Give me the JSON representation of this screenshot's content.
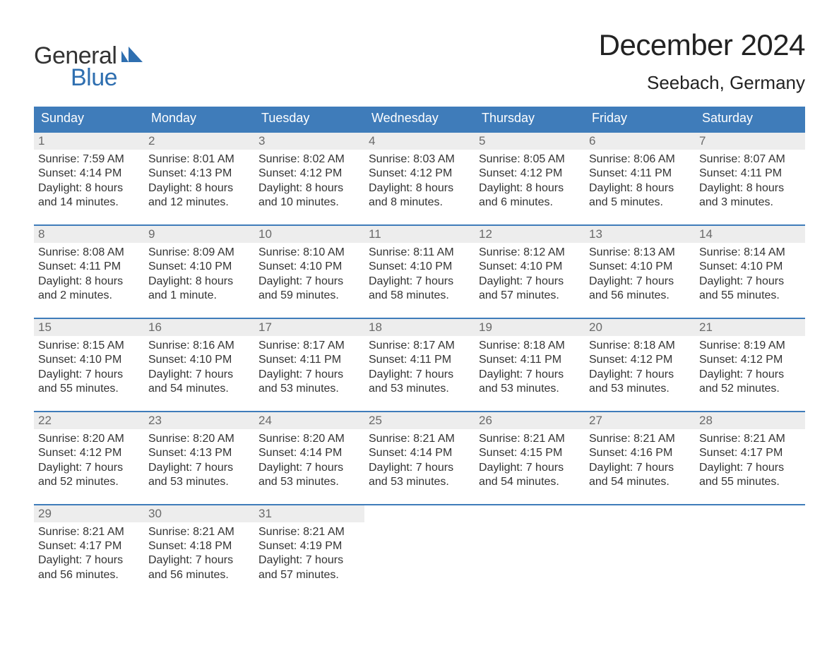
{
  "brand": {
    "word1": "General",
    "word2": "Blue",
    "word1_color": "#333333",
    "word2_color": "#2f6fb0",
    "mark_color": "#2f6fb0"
  },
  "title": {
    "month": "December 2024",
    "location": "Seebach, Germany",
    "month_fontsize": 42,
    "location_fontsize": 26,
    "text_color": "#222222"
  },
  "calendar": {
    "header_bg": "#3f7cba",
    "header_text_color": "#ffffff",
    "week_separator_color": "#3f7cba",
    "daynum_bg": "#ededed",
    "daynum_color": "#6a6a6a",
    "content_color": "#333333",
    "background_color": "#ffffff",
    "days_of_week": [
      "Sunday",
      "Monday",
      "Tuesday",
      "Wednesday",
      "Thursday",
      "Friday",
      "Saturday"
    ],
    "weeks": [
      [
        {
          "n": "1",
          "sunrise": "Sunrise: 7:59 AM",
          "sunset": "Sunset: 4:14 PM",
          "d1": "Daylight: 8 hours",
          "d2": "and 14 minutes."
        },
        {
          "n": "2",
          "sunrise": "Sunrise: 8:01 AM",
          "sunset": "Sunset: 4:13 PM",
          "d1": "Daylight: 8 hours",
          "d2": "and 12 minutes."
        },
        {
          "n": "3",
          "sunrise": "Sunrise: 8:02 AM",
          "sunset": "Sunset: 4:12 PM",
          "d1": "Daylight: 8 hours",
          "d2": "and 10 minutes."
        },
        {
          "n": "4",
          "sunrise": "Sunrise: 8:03 AM",
          "sunset": "Sunset: 4:12 PM",
          "d1": "Daylight: 8 hours",
          "d2": "and 8 minutes."
        },
        {
          "n": "5",
          "sunrise": "Sunrise: 8:05 AM",
          "sunset": "Sunset: 4:12 PM",
          "d1": "Daylight: 8 hours",
          "d2": "and 6 minutes."
        },
        {
          "n": "6",
          "sunrise": "Sunrise: 8:06 AM",
          "sunset": "Sunset: 4:11 PM",
          "d1": "Daylight: 8 hours",
          "d2": "and 5 minutes."
        },
        {
          "n": "7",
          "sunrise": "Sunrise: 8:07 AM",
          "sunset": "Sunset: 4:11 PM",
          "d1": "Daylight: 8 hours",
          "d2": "and 3 minutes."
        }
      ],
      [
        {
          "n": "8",
          "sunrise": "Sunrise: 8:08 AM",
          "sunset": "Sunset: 4:11 PM",
          "d1": "Daylight: 8 hours",
          "d2": "and 2 minutes."
        },
        {
          "n": "9",
          "sunrise": "Sunrise: 8:09 AM",
          "sunset": "Sunset: 4:10 PM",
          "d1": "Daylight: 8 hours",
          "d2": "and 1 minute."
        },
        {
          "n": "10",
          "sunrise": "Sunrise: 8:10 AM",
          "sunset": "Sunset: 4:10 PM",
          "d1": "Daylight: 7 hours",
          "d2": "and 59 minutes."
        },
        {
          "n": "11",
          "sunrise": "Sunrise: 8:11 AM",
          "sunset": "Sunset: 4:10 PM",
          "d1": "Daylight: 7 hours",
          "d2": "and 58 minutes."
        },
        {
          "n": "12",
          "sunrise": "Sunrise: 8:12 AM",
          "sunset": "Sunset: 4:10 PM",
          "d1": "Daylight: 7 hours",
          "d2": "and 57 minutes."
        },
        {
          "n": "13",
          "sunrise": "Sunrise: 8:13 AM",
          "sunset": "Sunset: 4:10 PM",
          "d1": "Daylight: 7 hours",
          "d2": "and 56 minutes."
        },
        {
          "n": "14",
          "sunrise": "Sunrise: 8:14 AM",
          "sunset": "Sunset: 4:10 PM",
          "d1": "Daylight: 7 hours",
          "d2": "and 55 minutes."
        }
      ],
      [
        {
          "n": "15",
          "sunrise": "Sunrise: 8:15 AM",
          "sunset": "Sunset: 4:10 PM",
          "d1": "Daylight: 7 hours",
          "d2": "and 55 minutes."
        },
        {
          "n": "16",
          "sunrise": "Sunrise: 8:16 AM",
          "sunset": "Sunset: 4:10 PM",
          "d1": "Daylight: 7 hours",
          "d2": "and 54 minutes."
        },
        {
          "n": "17",
          "sunrise": "Sunrise: 8:17 AM",
          "sunset": "Sunset: 4:11 PM",
          "d1": "Daylight: 7 hours",
          "d2": "and 53 minutes."
        },
        {
          "n": "18",
          "sunrise": "Sunrise: 8:17 AM",
          "sunset": "Sunset: 4:11 PM",
          "d1": "Daylight: 7 hours",
          "d2": "and 53 minutes."
        },
        {
          "n": "19",
          "sunrise": "Sunrise: 8:18 AM",
          "sunset": "Sunset: 4:11 PM",
          "d1": "Daylight: 7 hours",
          "d2": "and 53 minutes."
        },
        {
          "n": "20",
          "sunrise": "Sunrise: 8:18 AM",
          "sunset": "Sunset: 4:12 PM",
          "d1": "Daylight: 7 hours",
          "d2": "and 53 minutes."
        },
        {
          "n": "21",
          "sunrise": "Sunrise: 8:19 AM",
          "sunset": "Sunset: 4:12 PM",
          "d1": "Daylight: 7 hours",
          "d2": "and 52 minutes."
        }
      ],
      [
        {
          "n": "22",
          "sunrise": "Sunrise: 8:20 AM",
          "sunset": "Sunset: 4:12 PM",
          "d1": "Daylight: 7 hours",
          "d2": "and 52 minutes."
        },
        {
          "n": "23",
          "sunrise": "Sunrise: 8:20 AM",
          "sunset": "Sunset: 4:13 PM",
          "d1": "Daylight: 7 hours",
          "d2": "and 53 minutes."
        },
        {
          "n": "24",
          "sunrise": "Sunrise: 8:20 AM",
          "sunset": "Sunset: 4:14 PM",
          "d1": "Daylight: 7 hours",
          "d2": "and 53 minutes."
        },
        {
          "n": "25",
          "sunrise": "Sunrise: 8:21 AM",
          "sunset": "Sunset: 4:14 PM",
          "d1": "Daylight: 7 hours",
          "d2": "and 53 minutes."
        },
        {
          "n": "26",
          "sunrise": "Sunrise: 8:21 AM",
          "sunset": "Sunset: 4:15 PM",
          "d1": "Daylight: 7 hours",
          "d2": "and 54 minutes."
        },
        {
          "n": "27",
          "sunrise": "Sunrise: 8:21 AM",
          "sunset": "Sunset: 4:16 PM",
          "d1": "Daylight: 7 hours",
          "d2": "and 54 minutes."
        },
        {
          "n": "28",
          "sunrise": "Sunrise: 8:21 AM",
          "sunset": "Sunset: 4:17 PM",
          "d1": "Daylight: 7 hours",
          "d2": "and 55 minutes."
        }
      ],
      [
        {
          "n": "29",
          "sunrise": "Sunrise: 8:21 AM",
          "sunset": "Sunset: 4:17 PM",
          "d1": "Daylight: 7 hours",
          "d2": "and 56 minutes."
        },
        {
          "n": "30",
          "sunrise": "Sunrise: 8:21 AM",
          "sunset": "Sunset: 4:18 PM",
          "d1": "Daylight: 7 hours",
          "d2": "and 56 minutes."
        },
        {
          "n": "31",
          "sunrise": "Sunrise: 8:21 AM",
          "sunset": "Sunset: 4:19 PM",
          "d1": "Daylight: 7 hours",
          "d2": "and 57 minutes."
        },
        null,
        null,
        null,
        null
      ]
    ]
  }
}
